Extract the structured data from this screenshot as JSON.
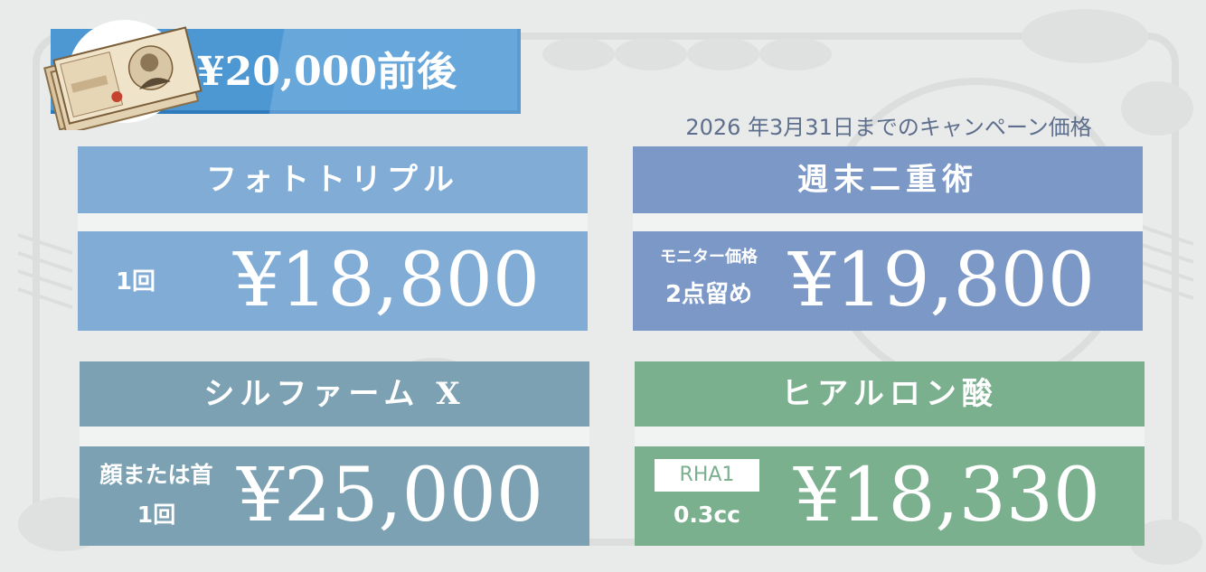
{
  "banner": {
    "title": "¥20,000前後"
  },
  "campaign_note": "2026 年3月31日までのキャンペーン価格",
  "cards": [
    {
      "title": "フォトトリプル",
      "note_line1": "1回",
      "price": "¥18,800",
      "color": "#80acd6"
    },
    {
      "title": "週末二重術",
      "note_line1": "モニター価格",
      "note_line2": "2点留め",
      "price": "¥19,800",
      "color": "#7b98c7"
    },
    {
      "title": "シルファーム X",
      "note_line1": "顔または首",
      "note_line2": "1回",
      "price": "¥25,000",
      "color": "#7ba1b2"
    },
    {
      "title": "ヒアルロン酸",
      "tag": "RHA1",
      "note_line2": "0.3cc",
      "price": "¥18,330",
      "color": "#7ab08e"
    }
  ],
  "icons": {
    "banner_image": "banknote-icon",
    "background": "banknote-pattern"
  }
}
